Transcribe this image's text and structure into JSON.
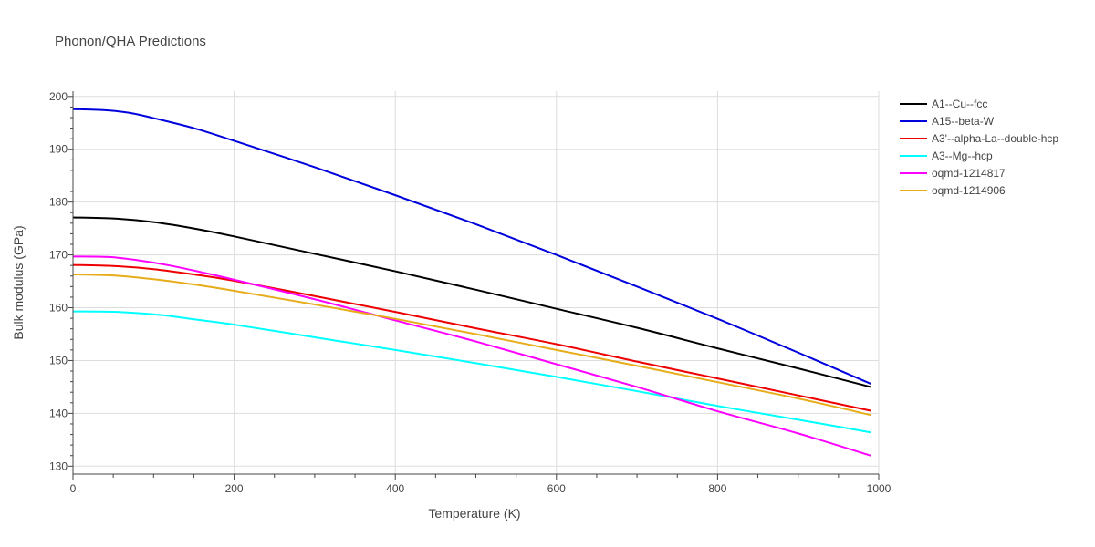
{
  "chart_data": {
    "type": "line",
    "title": "Phonon/QHA Predictions",
    "xlabel": "Temperature (K)",
    "ylabel": "Bulk modulus (GPa)",
    "xlim": [
      0,
      1000
    ],
    "ylim": [
      128.5,
      201
    ],
    "xticks": [
      0,
      200,
      400,
      600,
      800,
      1000
    ],
    "yticks": [
      130,
      140,
      150,
      160,
      170,
      180,
      190,
      200
    ],
    "grid": true,
    "legend_position": "right",
    "series": [
      {
        "name": "A1--Cu--fcc",
        "color": "#000000",
        "x": [
          0,
          50,
          100,
          150,
          200,
          300,
          400,
          500,
          600,
          700,
          800,
          900,
          990
        ],
        "y": [
          177.1,
          176.9,
          176.2,
          175.0,
          173.5,
          170.2,
          166.9,
          163.4,
          159.8,
          156.2,
          152.3,
          148.5,
          145.0
        ]
      },
      {
        "name": "A15--beta-W",
        "color": "#0000dd",
        "x": [
          0,
          40,
          70,
          100,
          150,
          200,
          300,
          400,
          500,
          600,
          700,
          800,
          900,
          990
        ],
        "y": [
          197.6,
          197.4,
          196.9,
          195.9,
          194.0,
          191.6,
          186.6,
          181.3,
          175.8,
          170.0,
          164.0,
          157.9,
          151.5,
          145.6
        ]
      },
      {
        "name": "A3'--alpha-La--double-hcp",
        "color": "#ee0000",
        "x": [
          0,
          50,
          100,
          150,
          200,
          300,
          400,
          500,
          600,
          700,
          800,
          900,
          990
        ],
        "y": [
          168.1,
          167.9,
          167.3,
          166.3,
          165.1,
          162.2,
          159.2,
          156.1,
          153.1,
          149.8,
          146.6,
          143.4,
          140.5
        ]
      },
      {
        "name": "A3--Mg--hcp",
        "color": "#00ffff",
        "x": [
          0,
          55,
          110,
          150,
          200,
          300,
          400,
          500,
          600,
          700,
          800,
          900,
          990
        ],
        "y": [
          159.3,
          159.2,
          158.6,
          157.8,
          156.8,
          154.4,
          152.0,
          149.5,
          146.9,
          144.2,
          141.4,
          138.8,
          136.4
        ]
      },
      {
        "name": "oqmd-1214817",
        "color": "#ff00ff",
        "x": [
          0,
          45,
          80,
          120,
          160,
          200,
          300,
          400,
          500,
          600,
          700,
          800,
          900,
          990
        ],
        "y": [
          169.7,
          169.6,
          169.0,
          168.0,
          166.7,
          165.3,
          161.6,
          157.6,
          153.6,
          149.3,
          145.0,
          140.4,
          136.2,
          132.0
        ]
      },
      {
        "name": "oqmd-1214906",
        "color": "#e6ac1a",
        "x": [
          0,
          50,
          100,
          150,
          200,
          300,
          400,
          500,
          600,
          700,
          800,
          900,
          990
        ],
        "y": [
          166.3,
          166.1,
          165.4,
          164.4,
          163.2,
          160.6,
          157.9,
          155.0,
          152.0,
          149.0,
          145.9,
          142.8,
          139.7
        ]
      }
    ]
  }
}
